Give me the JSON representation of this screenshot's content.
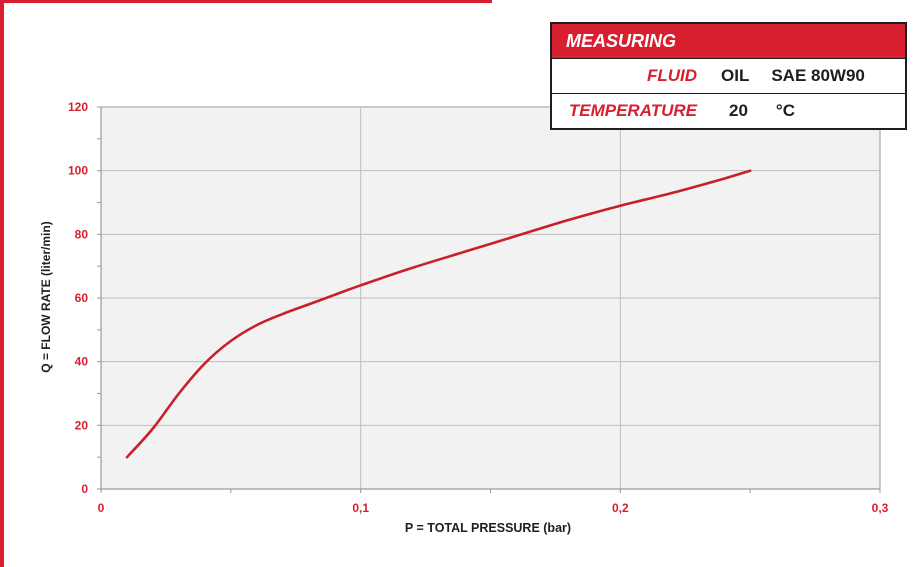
{
  "legend": {
    "title": "MEASURING",
    "fluid_label": "FLUID",
    "fluid_value_1": "OIL",
    "fluid_value_2": "SAE 80W90",
    "temperature_label": "TEMPERATURE",
    "temperature_value": "20",
    "temperature_unit": "°C"
  },
  "chart_data": {
    "type": "line",
    "xlabel": "P = TOTAL PRESSURE (bar)",
    "ylabel": "Q = FLOW RATE (liter/min)",
    "xlim": [
      0,
      0.3
    ],
    "ylim": [
      0,
      120
    ],
    "x_ticks": [
      "0",
      "0,1",
      "0,2",
      "0,3"
    ],
    "y_ticks": [
      "0",
      "20",
      "40",
      "60",
      "80",
      "100",
      "120"
    ],
    "grid": true,
    "series": [
      {
        "color": "#c8202a",
        "x": [
          0.01,
          0.02,
          0.03,
          0.04,
          0.05,
          0.06,
          0.07,
          0.08,
          0.09,
          0.1,
          0.12,
          0.14,
          0.16,
          0.18,
          0.2,
          0.22,
          0.24,
          0.25
        ],
        "y": [
          10,
          19,
          30,
          39.5,
          46.5,
          51.5,
          55,
          58,
          61,
          64,
          69.5,
          74.5,
          79.5,
          84.5,
          89,
          93,
          97.5,
          100
        ]
      }
    ]
  }
}
